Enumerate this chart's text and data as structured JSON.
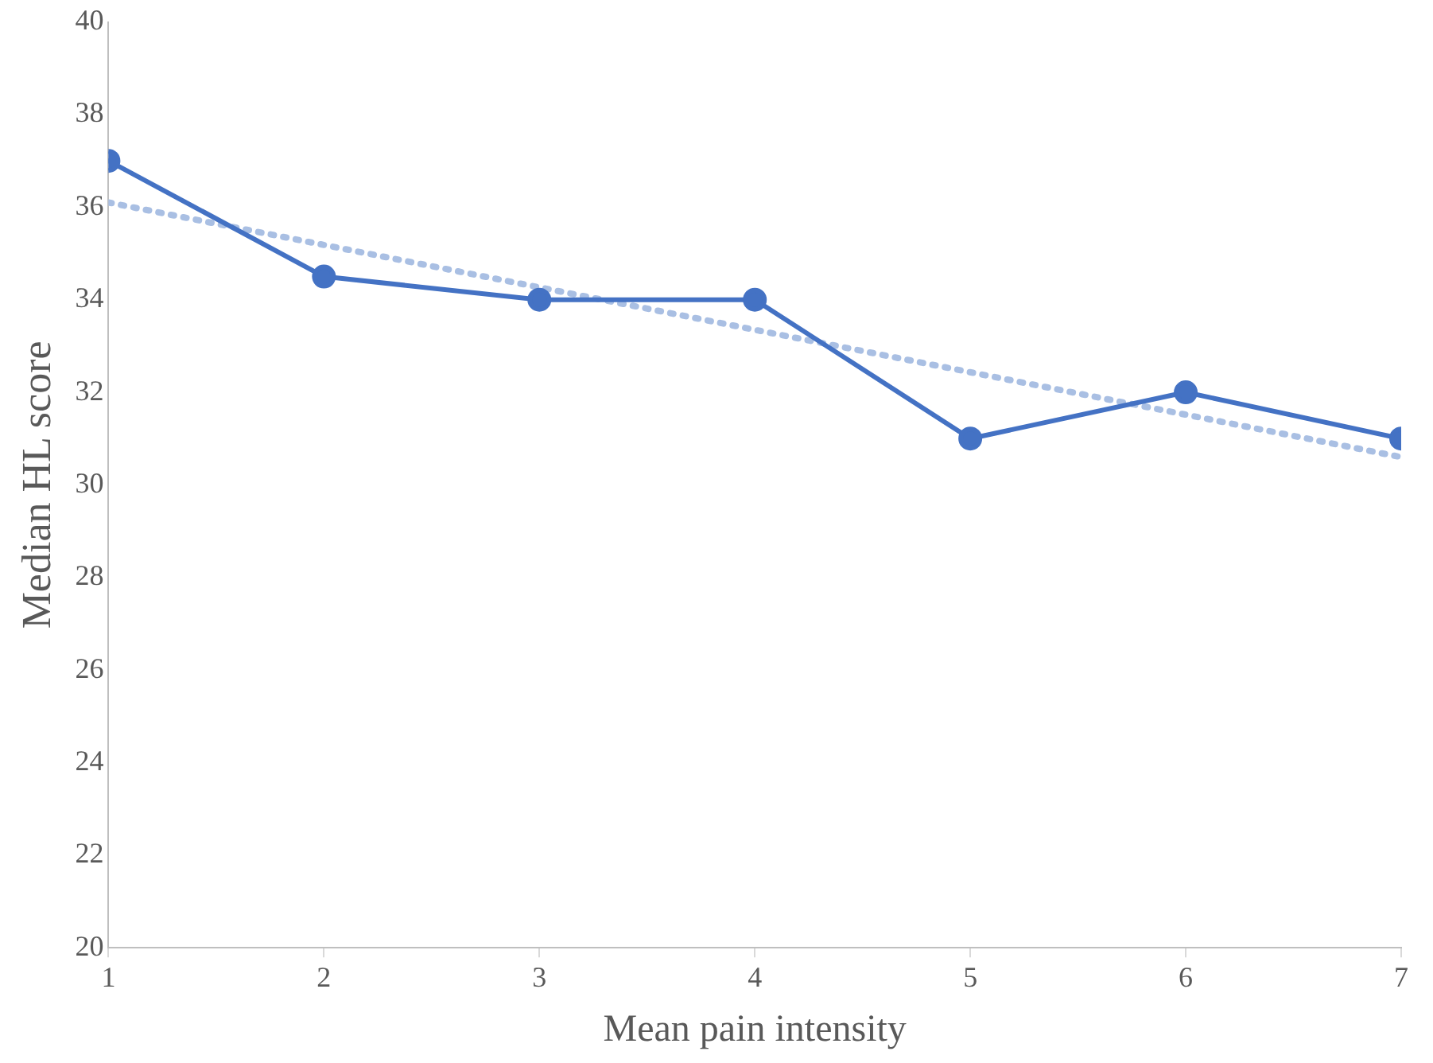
{
  "chart_data": {
    "type": "line",
    "xlabel": "Mean pain intensity",
    "ylabel": "Median HL score",
    "x": [
      1,
      2,
      3,
      4,
      5,
      6,
      7
    ],
    "series": [
      {
        "color": "#4472c4",
        "values": [
          37,
          34.5,
          34,
          34,
          31,
          32,
          31
        ],
        "marker": "circle",
        "line_style": "solid"
      },
      {
        "type": "line",
        "color": "#a9bfe3",
        "x": [
          1,
          7
        ],
        "values": [
          36.1,
          30.6
        ],
        "marker": "none",
        "line_style": "dotted"
      }
    ],
    "xlim": [
      1,
      7
    ],
    "xticks": [
      1,
      2,
      3,
      4,
      5,
      6,
      7
    ],
    "ylim": [
      20,
      40
    ],
    "yticks": [
      20,
      22,
      24,
      26,
      28,
      30,
      32,
      34,
      36,
      38,
      40
    ],
    "grid": false,
    "legend": false
  }
}
